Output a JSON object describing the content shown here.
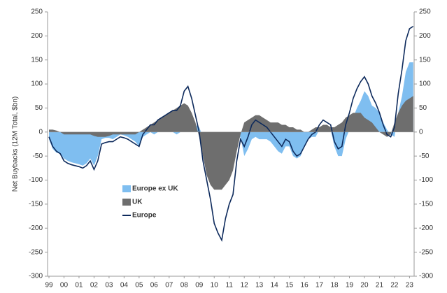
{
  "chart_data": {
    "type": "area",
    "y_label": "Net Buybacks (12M Total, $bn)",
    "x": [
      1999,
      1999.25,
      1999.5,
      1999.75,
      2000,
      2000.25,
      2000.5,
      2000.75,
      2001,
      2001.25,
      2001.5,
      2001.75,
      2002,
      2002.25,
      2002.5,
      2002.75,
      2003,
      2003.25,
      2003.5,
      2003.75,
      2004,
      2004.25,
      2004.5,
      2004.75,
      2005,
      2005.25,
      2005.5,
      2005.75,
      2006,
      2006.25,
      2006.5,
      2006.75,
      2007,
      2007.25,
      2007.5,
      2007.75,
      2008,
      2008.25,
      2008.5,
      2008.75,
      2009,
      2009.25,
      2009.5,
      2009.75,
      2010,
      2010.25,
      2010.5,
      2010.75,
      2011,
      2011.25,
      2011.5,
      2011.75,
      2012,
      2012.25,
      2012.5,
      2012.75,
      2013,
      2013.25,
      2013.5,
      2013.75,
      2014,
      2014.25,
      2014.5,
      2014.75,
      2015,
      2015.25,
      2015.5,
      2015.75,
      2016,
      2016.25,
      2016.5,
      2016.75,
      2017,
      2017.25,
      2017.5,
      2017.75,
      2018,
      2018.25,
      2018.5,
      2018.75,
      2019,
      2019.25,
      2019.5,
      2019.75,
      2020,
      2020.25,
      2020.5,
      2020.75,
      2021,
      2021.25,
      2021.5,
      2021.75,
      2022,
      2022.25,
      2022.5,
      2022.75,
      2023,
      2023.25
    ],
    "series": [
      {
        "name": "Europe ex UK",
        "color": "#7fbef0",
        "kind": "area",
        "values": [
          -15,
          -35,
          -43,
          -45,
          -55,
          -60,
          -63,
          -65,
          -67,
          -70,
          -65,
          -55,
          -70,
          -50,
          -15,
          -12,
          -12,
          -15,
          -10,
          -5,
          -7,
          -10,
          -15,
          -20,
          -30,
          -10,
          -5,
          0,
          -5,
          0,
          0,
          0,
          0,
          0,
          -5,
          0,
          25,
          40,
          30,
          15,
          10,
          -10,
          -10,
          -30,
          -70,
          -90,
          -105,
          -70,
          -50,
          -50,
          -20,
          -10,
          -50,
          -35,
          -15,
          -10,
          -15,
          -15,
          -15,
          -20,
          -30,
          -40,
          -45,
          -30,
          -30,
          -50,
          -55,
          -50,
          -30,
          -15,
          -10,
          -10,
          5,
          10,
          5,
          5,
          -30,
          -50,
          -50,
          -15,
          5,
          30,
          50,
          65,
          85,
          75,
          55,
          50,
          40,
          20,
          5,
          -5,
          -10,
          40,
          75,
          125,
          145,
          145
        ]
      },
      {
        "name": "UK",
        "color": "#6e6e6e",
        "kind": "area",
        "values": [
          5,
          5,
          3,
          0,
          -5,
          -5,
          -5,
          -5,
          -5,
          -5,
          -5,
          -5,
          -8,
          -10,
          -10,
          -10,
          -8,
          -5,
          -5,
          -5,
          -5,
          -5,
          -5,
          -5,
          0,
          5,
          10,
          15,
          20,
          25,
          30,
          35,
          40,
          45,
          50,
          55,
          60,
          55,
          40,
          20,
          -10,
          -50,
          -90,
          -110,
          -120,
          -120,
          -120,
          -110,
          -100,
          -80,
          -40,
          -5,
          20,
          25,
          30,
          35,
          35,
          30,
          25,
          20,
          20,
          20,
          15,
          15,
          10,
          10,
          5,
          5,
          0,
          0,
          5,
          10,
          10,
          15,
          15,
          10,
          10,
          15,
          20,
          30,
          35,
          40,
          40,
          40,
          30,
          25,
          20,
          10,
          0,
          -5,
          -10,
          -5,
          20,
          40,
          55,
          65,
          70,
          75
        ]
      },
      {
        "name": "Europe",
        "color": "#0d2a5c",
        "kind": "line",
        "values": [
          -10,
          -30,
          -40,
          -45,
          -60,
          -65,
          -68,
          -70,
          -72,
          -75,
          -70,
          -60,
          -78,
          -60,
          -25,
          -22,
          -20,
          -20,
          -15,
          -10,
          -12,
          -15,
          -20,
          -25,
          -30,
          -5,
          5,
          15,
          15,
          25,
          30,
          35,
          40,
          45,
          45,
          55,
          85,
          95,
          70,
          35,
          0,
          -60,
          -100,
          -140,
          -190,
          -210,
          -225,
          -180,
          -150,
          -130,
          -60,
          -15,
          -30,
          -10,
          15,
          25,
          20,
          15,
          10,
          0,
          -10,
          -20,
          -30,
          -15,
          -20,
          -40,
          -50,
          -45,
          -30,
          -15,
          -5,
          0,
          15,
          25,
          20,
          15,
          -20,
          -35,
          -30,
          15,
          40,
          70,
          90,
          105,
          115,
          100,
          75,
          60,
          40,
          15,
          -5,
          -10,
          10,
          80,
          130,
          190,
          215,
          220
        ]
      }
    ],
    "xlim": [
      1999,
      2023.4
    ],
    "xticks": [
      {
        "value": 1999,
        "label": "99"
      },
      {
        "value": 2000,
        "label": "00"
      },
      {
        "value": 2001,
        "label": "01"
      },
      {
        "value": 2002,
        "label": "02"
      },
      {
        "value": 2003,
        "label": "03"
      },
      {
        "value": 2004,
        "label": "04"
      },
      {
        "value": 2005,
        "label": "05"
      },
      {
        "value": 2006,
        "label": "06"
      },
      {
        "value": 2007,
        "label": "07"
      },
      {
        "value": 2008,
        "label": "08"
      },
      {
        "value": 2009,
        "label": "09"
      },
      {
        "value": 2010,
        "label": "10"
      },
      {
        "value": 2011,
        "label": "11"
      },
      {
        "value": 2012,
        "label": "12"
      },
      {
        "value": 2013,
        "label": "13"
      },
      {
        "value": 2014,
        "label": "14"
      },
      {
        "value": 2015,
        "label": "15"
      },
      {
        "value": 2016,
        "label": "16"
      },
      {
        "value": 2017,
        "label": "17"
      },
      {
        "value": 2018,
        "label": "18"
      },
      {
        "value": 2019,
        "label": "19"
      },
      {
        "value": 2020,
        "label": "20"
      },
      {
        "value": 2021,
        "label": "21"
      },
      {
        "value": 2022,
        "label": "22"
      },
      {
        "value": 2023,
        "label": "23"
      }
    ],
    "ylim": [
      -300,
      250
    ],
    "yticks": [
      -300,
      -250,
      -200,
      -150,
      -100,
      -50,
      0,
      50,
      100,
      150,
      200,
      250
    ],
    "y2lim": [
      -300,
      250
    ],
    "y2ticks": [
      -300,
      -250,
      -200,
      -150,
      -100,
      -50,
      0,
      50,
      100,
      150,
      200,
      250
    ],
    "legend": "lower left"
  }
}
